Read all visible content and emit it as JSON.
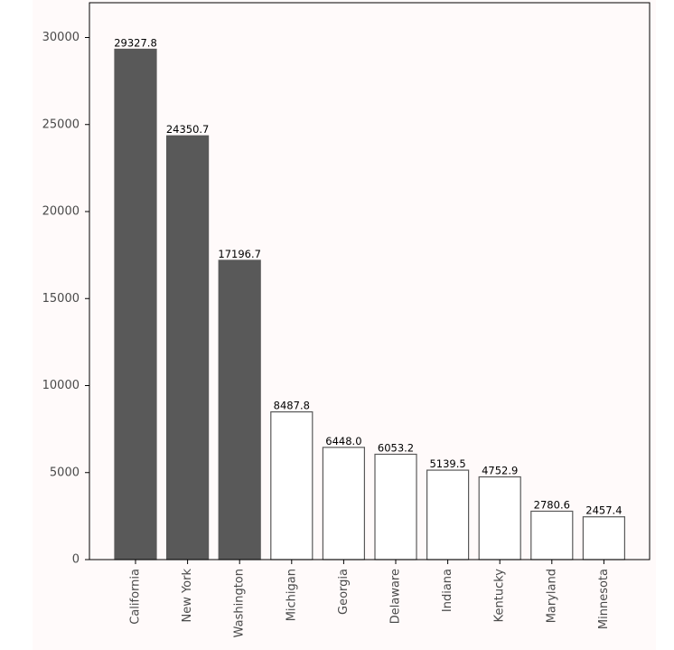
{
  "colors": {
    "figure_background": "#fffafa",
    "plot_background": "#fffafa",
    "highlight_bar_fill": "#595959",
    "normal_bar_fill": "#ffffff",
    "bar_edge": "#595959",
    "axis_color": "#000000",
    "text_color": "#4a4a4a"
  },
  "chart_data": {
    "type": "bar",
    "title": "",
    "xlabel": "",
    "ylabel": "",
    "categories": [
      "California",
      "New York",
      "Washington",
      "Michigan",
      "Georgia",
      "Delaware",
      "Indiana",
      "Kentucky",
      "Maryland",
      "Minnesota"
    ],
    "values": [
      29327.8,
      24350.7,
      17196.7,
      8487.8,
      6448.0,
      6053.2,
      5139.5,
      4752.9,
      2780.6,
      2457.4
    ],
    "value_labels": [
      "29327.8",
      "24350.7",
      "17196.7",
      "8487.8",
      "6448.0",
      "6053.2",
      "5139.5",
      "4752.9",
      "2780.6",
      "2457.4"
    ],
    "highlighted": [
      true,
      true,
      true,
      false,
      false,
      false,
      false,
      false,
      false,
      false
    ],
    "ylim": [
      0,
      32000
    ],
    "yticks": [
      0,
      5000,
      10000,
      15000,
      20000,
      25000,
      30000
    ],
    "ytick_labels": [
      "0",
      "5000",
      "10000",
      "15000",
      "20000",
      "25000",
      "30000"
    ],
    "grid": false,
    "legend": "none"
  }
}
